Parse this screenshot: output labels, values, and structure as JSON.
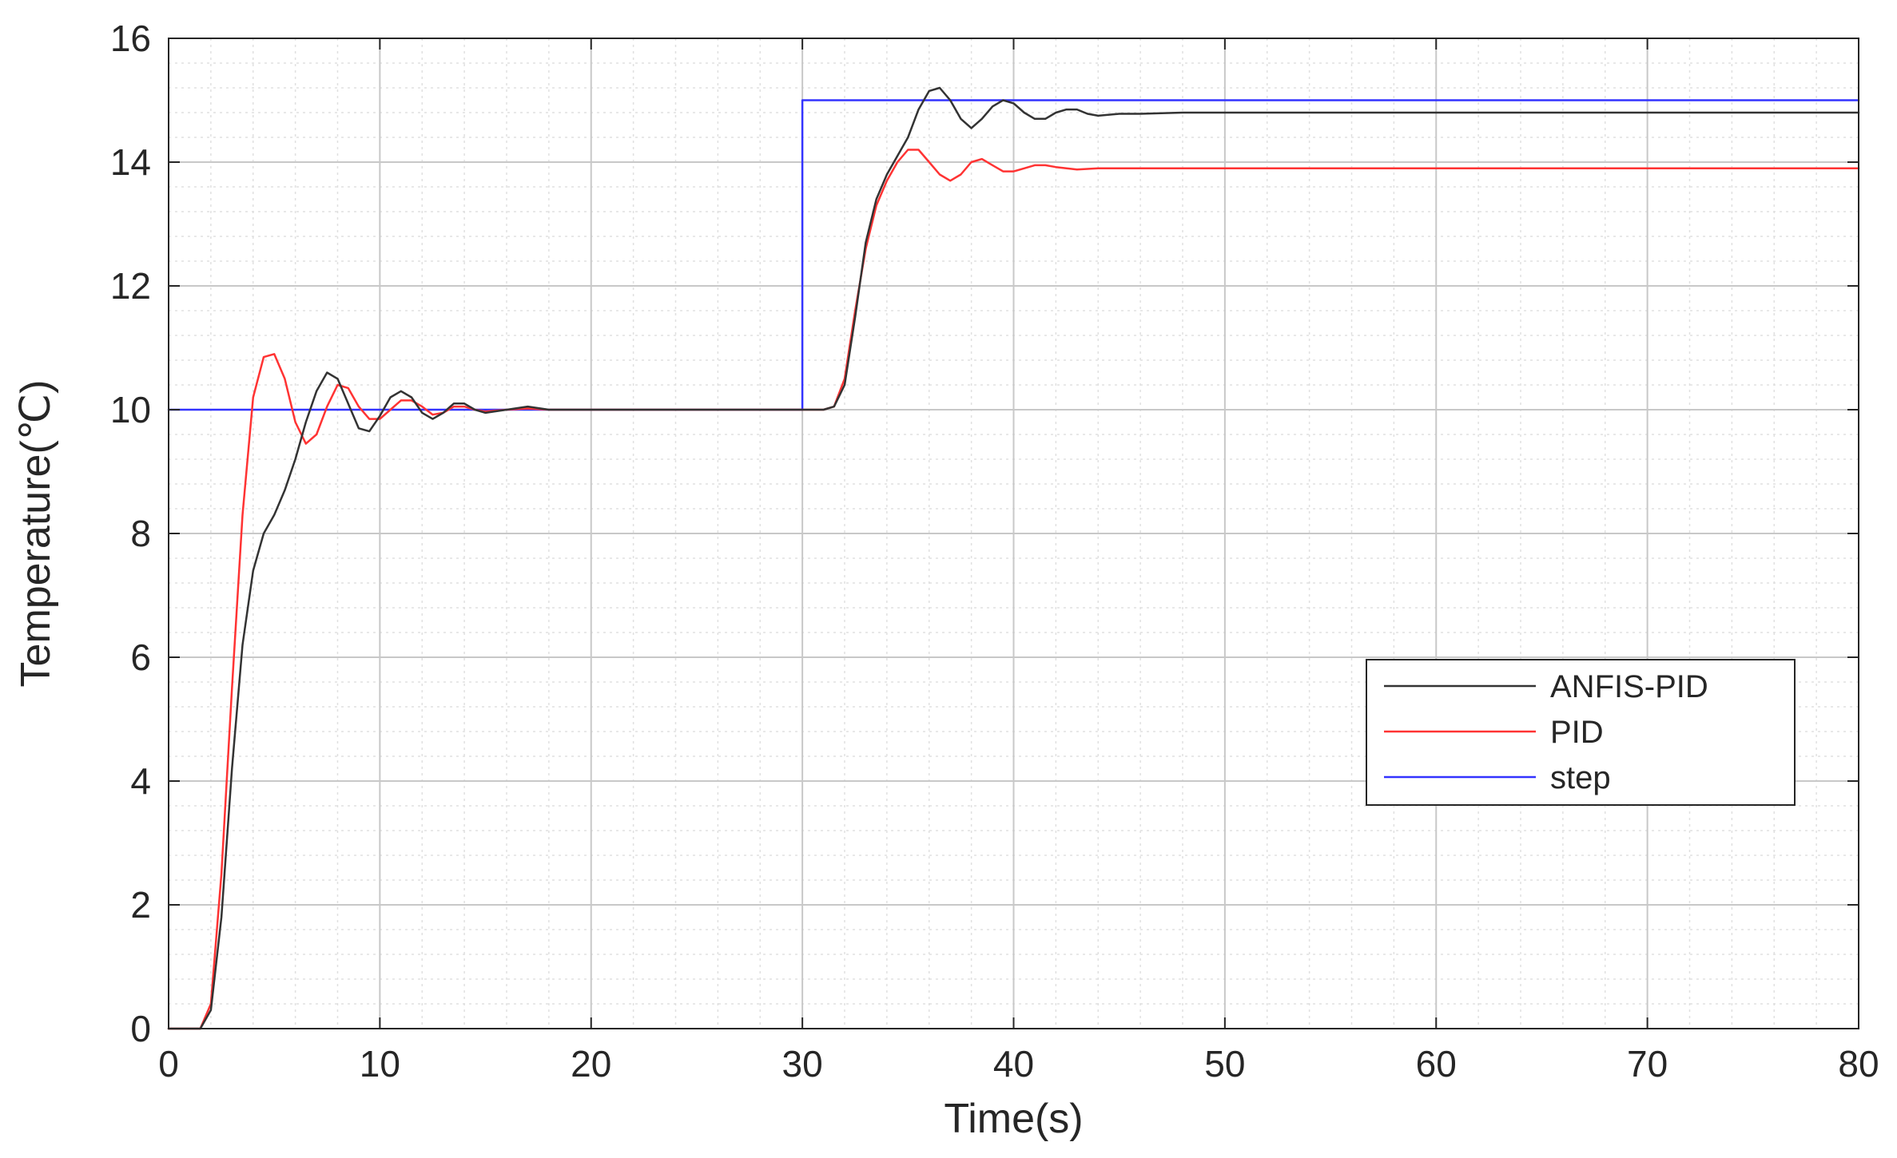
{
  "chart_data": {
    "type": "line",
    "xlabel": "Time(s)",
    "ylabel": "Temperature(℃)",
    "xlim": [
      0,
      80
    ],
    "ylim": [
      0,
      16
    ],
    "xticks": [
      0,
      10,
      20,
      30,
      40,
      50,
      60,
      70,
      80
    ],
    "yticks": [
      0,
      2,
      4,
      6,
      8,
      10,
      12,
      14,
      16
    ],
    "xtick_labels": [
      "0",
      "10",
      "20",
      "30",
      "40",
      "50",
      "60",
      "70",
      "80"
    ],
    "ytick_labels": [
      "0",
      "2",
      "4",
      "6",
      "8",
      "10",
      "12",
      "14",
      "16"
    ],
    "grid": true,
    "minor_grid": true,
    "legend_position": "right",
    "series": [
      {
        "name": "ANFIS-PID",
        "color": "#333333",
        "x": [
          0,
          1.5,
          2,
          2.5,
          3,
          3.5,
          4,
          4.5,
          5,
          5.5,
          6,
          6.5,
          7,
          7.5,
          8,
          8.5,
          9,
          9.5,
          10,
          10.5,
          11,
          11.5,
          12,
          12.5,
          13,
          13.5,
          14,
          14.5,
          15,
          16,
          17,
          18,
          20,
          25,
          30,
          31,
          31.5,
          32,
          32.5,
          33,
          33.5,
          34,
          34.5,
          35,
          35.5,
          36,
          36.5,
          37,
          37.5,
          38,
          38.5,
          39,
          39.5,
          40,
          40.5,
          41,
          41.5,
          42,
          42.5,
          43,
          43.5,
          44,
          45,
          46,
          48,
          50,
          60,
          70,
          80
        ],
        "y": [
          0,
          0,
          0.3,
          1.8,
          4.2,
          6.2,
          7.4,
          8.0,
          8.3,
          8.7,
          9.2,
          9.8,
          10.3,
          10.6,
          10.5,
          10.1,
          9.7,
          9.65,
          9.9,
          10.2,
          10.3,
          10.2,
          9.95,
          9.85,
          9.95,
          10.1,
          10.1,
          10.0,
          9.95,
          10.0,
          10.05,
          10.0,
          10.0,
          10.0,
          10.0,
          10.0,
          10.05,
          10.4,
          11.5,
          12.7,
          13.4,
          13.8,
          14.1,
          14.4,
          14.85,
          15.15,
          15.2,
          15.0,
          14.7,
          14.55,
          14.7,
          14.9,
          15.0,
          14.95,
          14.8,
          14.7,
          14.7,
          14.8,
          14.85,
          14.85,
          14.78,
          14.75,
          14.78,
          14.78,
          14.8,
          14.8,
          14.8,
          14.8,
          14.8
        ]
      },
      {
        "name": "PID",
        "color": "#ff3333",
        "x": [
          0,
          1.5,
          2,
          2.5,
          3,
          3.5,
          4,
          4.5,
          5,
          5.5,
          6,
          6.5,
          7,
          7.5,
          8,
          8.5,
          9,
          9.5,
          10,
          10.5,
          11,
          11.5,
          12,
          12.5,
          13,
          13.5,
          14,
          14.5,
          15,
          16,
          17,
          18,
          20,
          25,
          30,
          31,
          31.5,
          32,
          32.5,
          33,
          33.5,
          34,
          34.5,
          35,
          35.5,
          36,
          36.5,
          37,
          37.5,
          38,
          38.5,
          39,
          39.5,
          40,
          40.5,
          41,
          41.5,
          42,
          43,
          44,
          45,
          46,
          48,
          50,
          60,
          70,
          80
        ],
        "y": [
          0,
          0,
          0.4,
          2.5,
          5.5,
          8.3,
          10.2,
          10.85,
          10.9,
          10.5,
          9.8,
          9.45,
          9.6,
          10.05,
          10.4,
          10.35,
          10.05,
          9.85,
          9.85,
          10.0,
          10.15,
          10.15,
          10.05,
          9.92,
          9.95,
          10.05,
          10.05,
          10.0,
          9.97,
          10.0,
          10.02,
          10.0,
          10.0,
          10.0,
          10.0,
          10.0,
          10.05,
          10.5,
          11.6,
          12.6,
          13.3,
          13.7,
          14.0,
          14.2,
          14.2,
          14.0,
          13.8,
          13.7,
          13.8,
          14.0,
          14.05,
          13.95,
          13.85,
          13.85,
          13.9,
          13.95,
          13.95,
          13.92,
          13.88,
          13.9,
          13.9,
          13.9,
          13.9,
          13.9,
          13.9,
          13.9,
          13.9
        ]
      },
      {
        "name": "step",
        "color": "#3333ff",
        "x": [
          0,
          30,
          30,
          80
        ],
        "y": [
          10,
          10,
          15,
          15
        ]
      }
    ]
  }
}
